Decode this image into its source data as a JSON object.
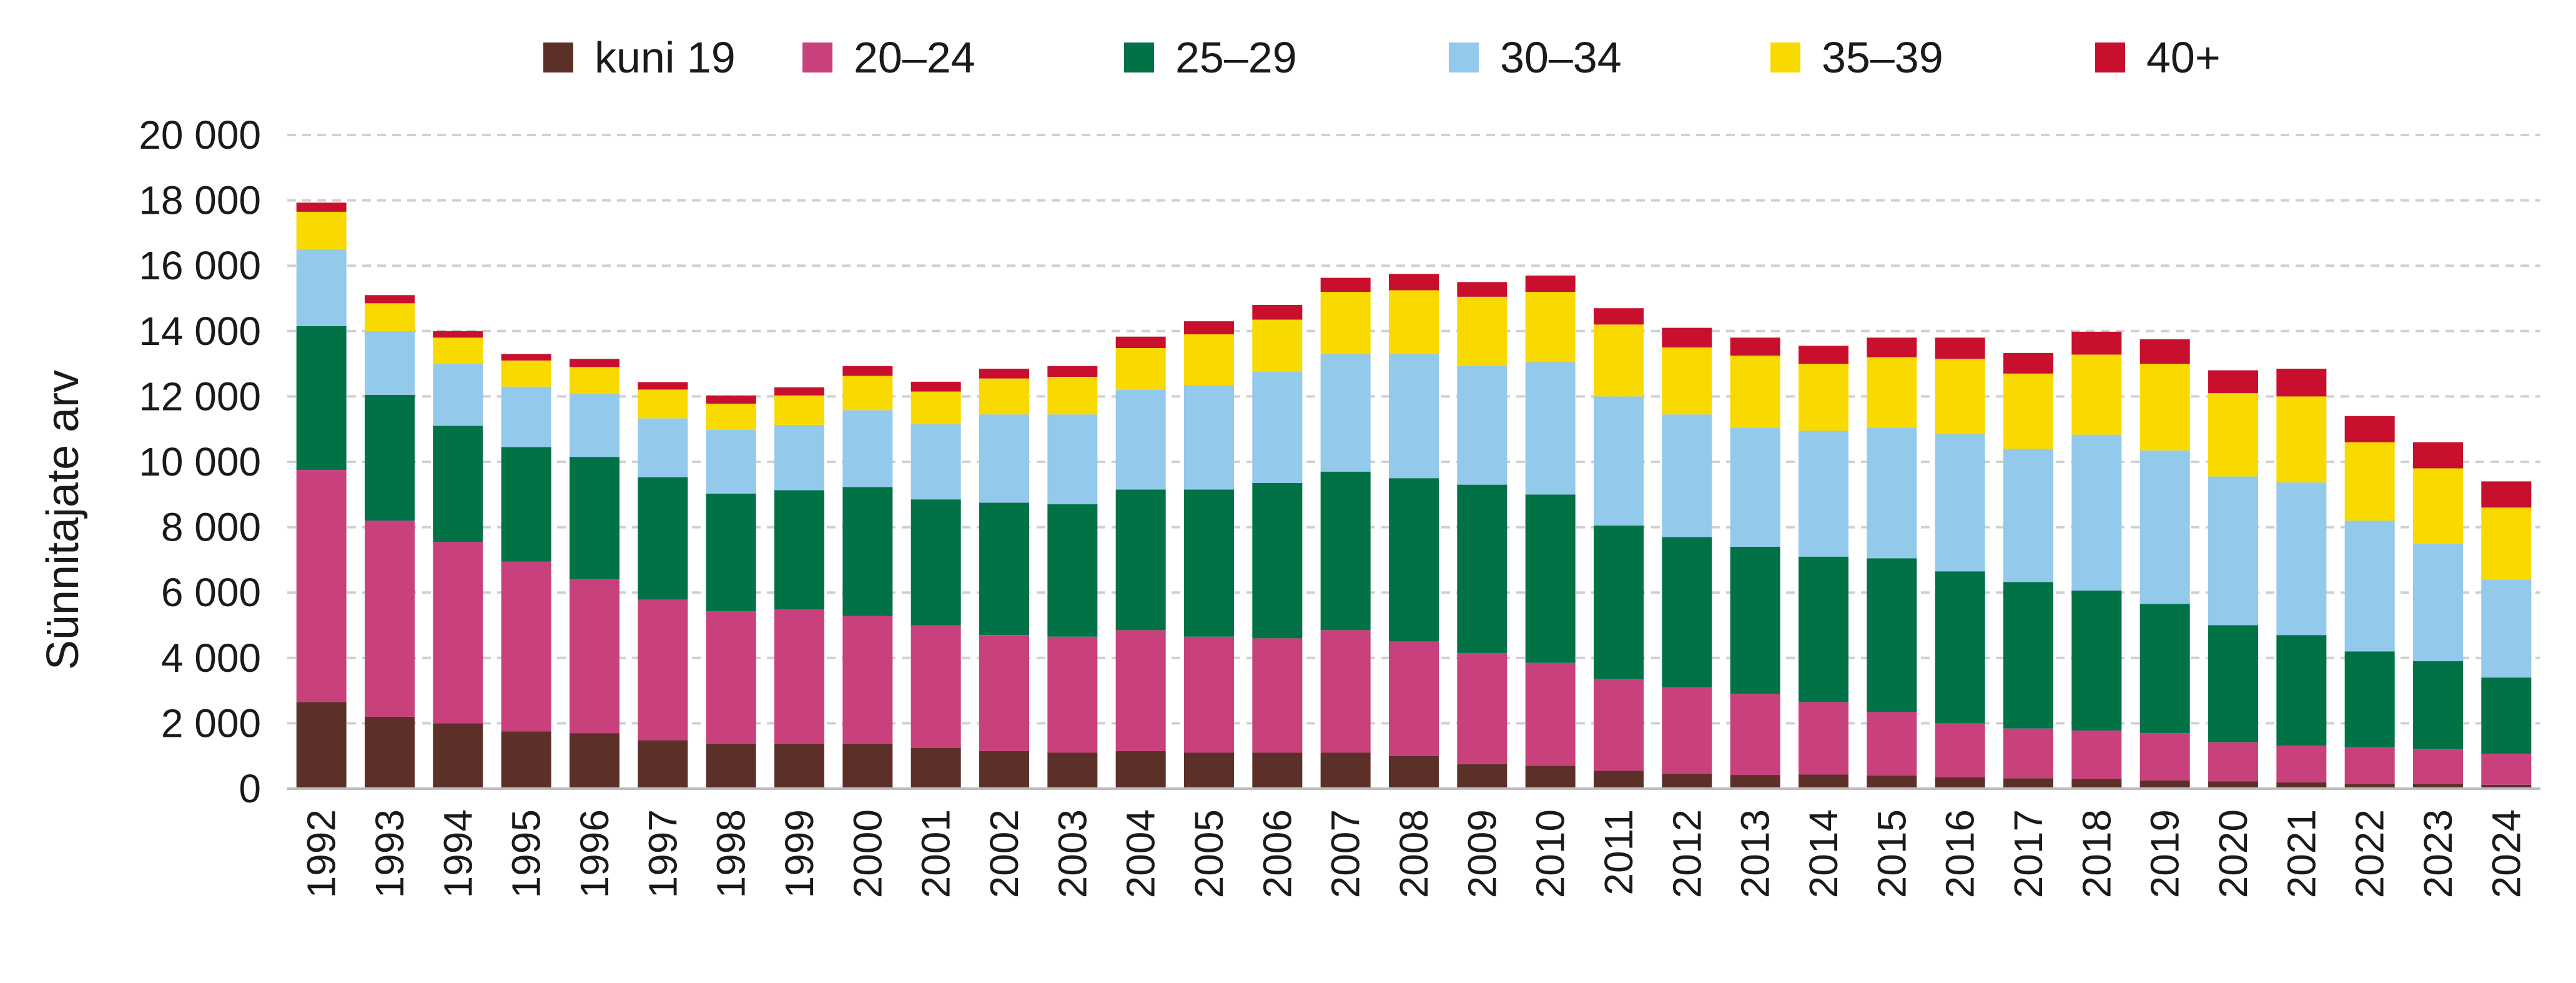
{
  "chart_data": {
    "type": "bar",
    "stacked": true,
    "title": "",
    "xlabel": "",
    "ylabel": "Sünnitajate arv",
    "ylim": [
      0,
      20000
    ],
    "y_ticks": [
      0,
      2000,
      4000,
      6000,
      8000,
      10000,
      12000,
      14000,
      16000,
      18000,
      20000
    ],
    "y_tick_labels": [
      "0",
      "2 000",
      "4 000",
      "6 000",
      "8 000",
      "10 000",
      "12 000",
      "14 000",
      "16 000",
      "18 000",
      "20 000"
    ],
    "grid": true,
    "legend_position": "top",
    "categories": [
      "1992",
      "1993",
      "1994",
      "1995",
      "1996",
      "1997",
      "1998",
      "1999",
      "2000",
      "2001",
      "2002",
      "2003",
      "2004",
      "2005",
      "2006",
      "2007",
      "2008",
      "2009",
      "2010",
      "2011",
      "2012",
      "2013",
      "2014",
      "2015",
      "2016",
      "2017",
      "2018",
      "2019",
      "2020",
      "2021",
      "2022",
      "2023",
      "2024"
    ],
    "series": [
      {
        "name": "kuni 19",
        "color": "#5c3029",
        "values": [
          2650,
          2200,
          2000,
          1750,
          1700,
          1480,
          1380,
          1380,
          1380,
          1250,
          1150,
          1100,
          1150,
          1100,
          1100,
          1100,
          1000,
          750,
          700,
          550,
          450,
          420,
          430,
          400,
          350,
          320,
          300,
          250,
          220,
          190,
          150,
          150,
          120
        ]
      },
      {
        "name": "20–24",
        "color": "#c8417c",
        "values": [
          7100,
          6000,
          5550,
          5200,
          4700,
          4300,
          4050,
          4100,
          3900,
          3750,
          3550,
          3550,
          3700,
          3550,
          3500,
          3750,
          3500,
          3400,
          3150,
          2800,
          2650,
          2480,
          2220,
          1950,
          1650,
          1520,
          1480,
          1450,
          1200,
          1130,
          1120,
          1050,
          950
        ]
      },
      {
        "name": "25–29",
        "color": "#007246",
        "values": [
          4400,
          3850,
          3550,
          3500,
          3750,
          3750,
          3600,
          3650,
          3950,
          3850,
          4050,
          4050,
          4300,
          4500,
          4750,
          4850,
          5000,
          5150,
          5150,
          4700,
          4600,
          4500,
          4450,
          4700,
          4650,
          4480,
          4280,
          3950,
          3580,
          3380,
          2930,
          2700,
          2330
        ]
      },
      {
        "name": "30–34",
        "color": "#93c9eb",
        "values": [
          2350,
          1950,
          1900,
          1850,
          1950,
          1800,
          1950,
          2000,
          2350,
          2300,
          2700,
          2750,
          3050,
          3200,
          3400,
          3600,
          3800,
          3650,
          4050,
          3950,
          3750,
          3650,
          3850,
          4000,
          4200,
          4080,
          4770,
          4700,
          4550,
          4670,
          4000,
          3600,
          3000
        ]
      },
      {
        "name": "35–39",
        "color": "#f9da00",
        "values": [
          1150,
          850,
          800,
          800,
          800,
          880,
          800,
          900,
          1050,
          1000,
          1100,
          1150,
          1280,
          1550,
          1600,
          1900,
          1950,
          2100,
          2150,
          2200,
          2050,
          2200,
          2050,
          2150,
          2300,
          2300,
          2450,
          2650,
          2550,
          2630,
          2400,
          2300,
          2200
        ]
      },
      {
        "name": "40+",
        "color": "#c8102e",
        "values": [
          280,
          250,
          200,
          200,
          250,
          230,
          250,
          250,
          300,
          300,
          300,
          330,
          350,
          400,
          450,
          430,
          500,
          450,
          500,
          500,
          600,
          550,
          550,
          600,
          650,
          630,
          700,
          750,
          700,
          850,
          800,
          800,
          800
        ]
      }
    ]
  }
}
